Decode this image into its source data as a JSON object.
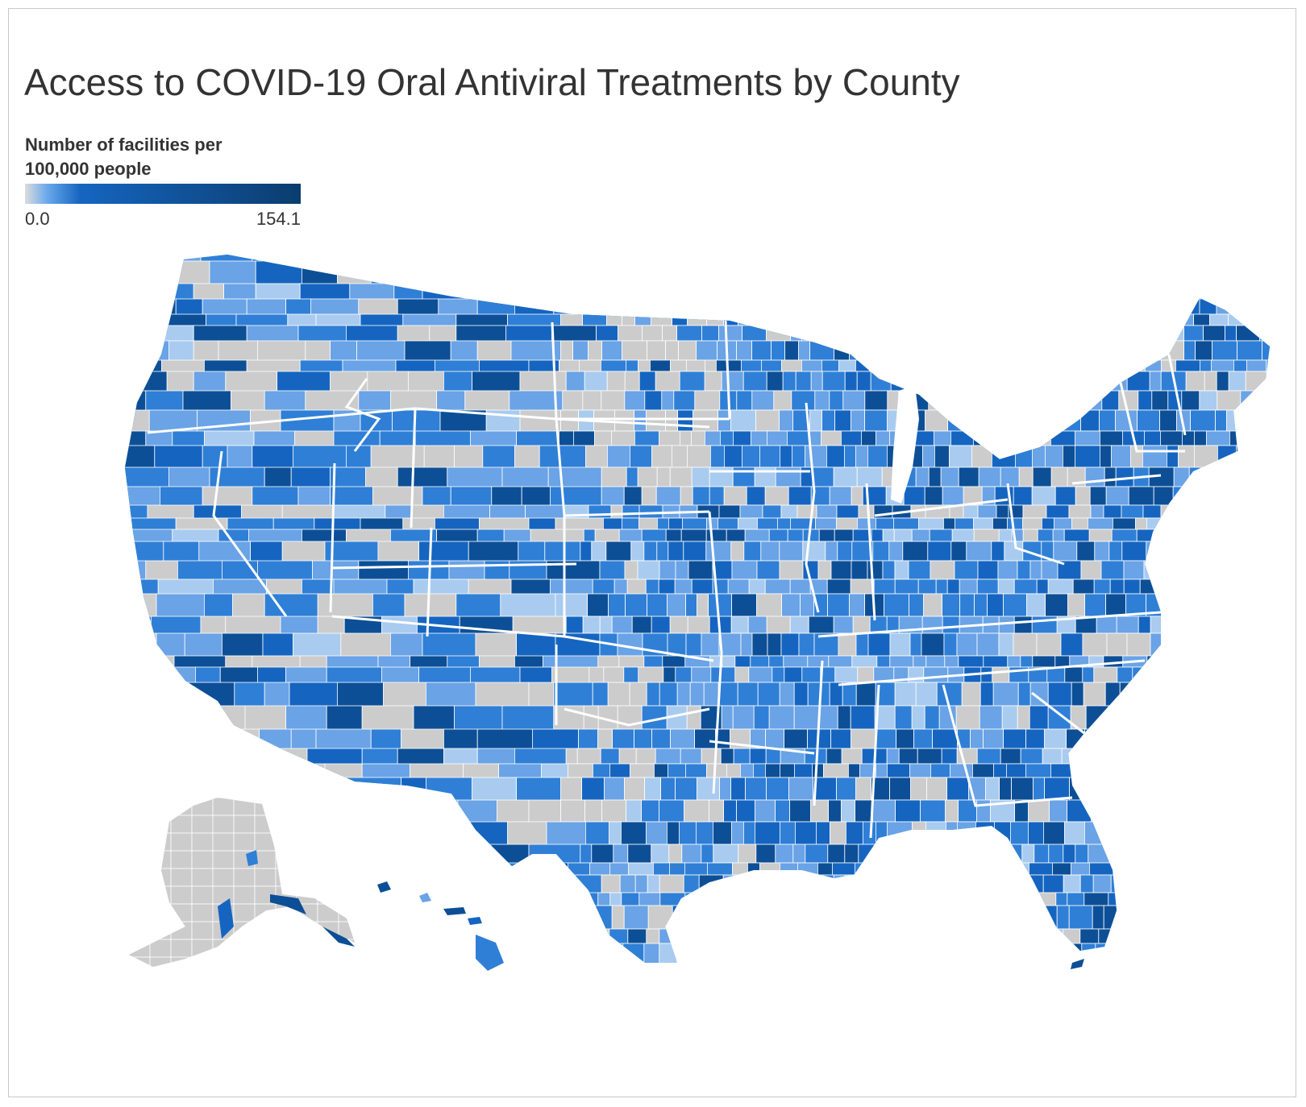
{
  "title": "Access to COVID-19 Oral Antiviral Treatments by County",
  "legend": {
    "title": "Number of facilities per\n100,000 people",
    "min": "0.0",
    "max": "154.1",
    "min_value": 0.0,
    "max_value": 154.1,
    "colors": {
      "low": "#dcdcdc",
      "low_blue": "#6aa8ec",
      "mid": "#1565c0",
      "high": "#0b3d6e"
    }
  },
  "colors": {
    "no_data": "#cccccc",
    "very_light": "#a9cbef",
    "light": "#6aa3e6",
    "medium": "#2f7fd6",
    "dark": "#1565c0",
    "darkest": "#0d4f96",
    "border": "#ffffff"
  }
}
